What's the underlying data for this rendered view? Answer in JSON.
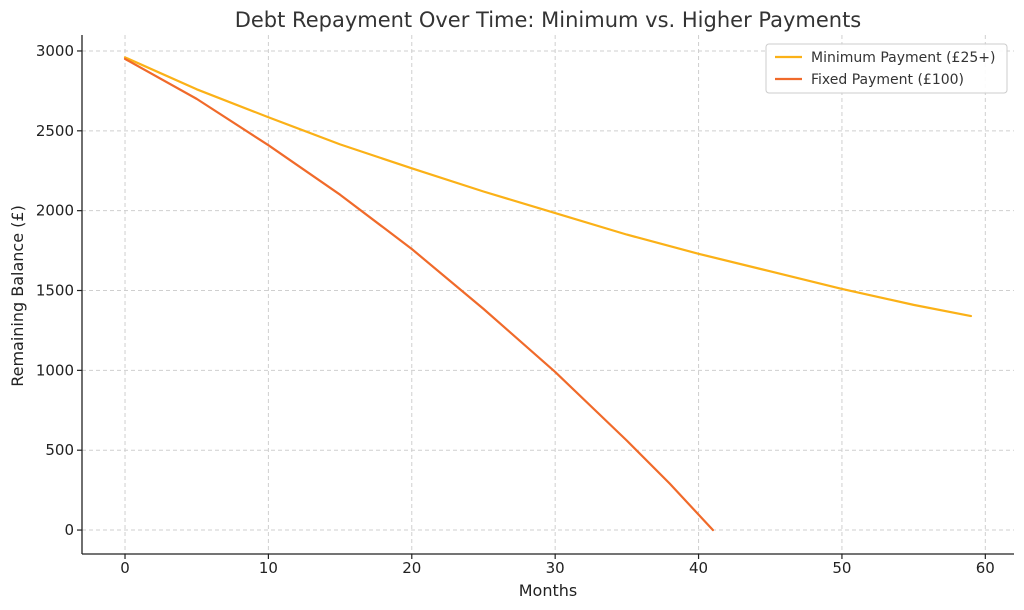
{
  "chart_data": {
    "type": "line",
    "title": "Debt Repayment Over Time: Minimum vs. Higher Payments",
    "xlabel": "Months",
    "ylabel": "Remaining Balance (£)",
    "xlim": [
      -3,
      62
    ],
    "ylim": [
      -150,
      3100
    ],
    "xticks": [
      0,
      10,
      20,
      30,
      40,
      50,
      60
    ],
    "yticks": [
      0,
      500,
      1000,
      1500,
      2000,
      2500,
      3000
    ],
    "grid": true,
    "legend_position": "top-right",
    "series": [
      {
        "name": "Minimum Payment (£25+)",
        "color": "#FBB117",
        "x": [
          0,
          5,
          10,
          15,
          20,
          25,
          30,
          35,
          40,
          45,
          50,
          55,
          59
        ],
        "y": [
          2960,
          2760,
          2585,
          2415,
          2265,
          2120,
          1985,
          1850,
          1730,
          1620,
          1510,
          1410,
          1340
        ]
      },
      {
        "name": "Fixed Payment (£100)",
        "color": "#F06A2A",
        "x": [
          0,
          5,
          10,
          15,
          20,
          25,
          30,
          35,
          38,
          41
        ],
        "y": [
          2950,
          2700,
          2410,
          2100,
          1760,
          1385,
          990,
          560,
          290,
          0
        ]
      }
    ]
  }
}
